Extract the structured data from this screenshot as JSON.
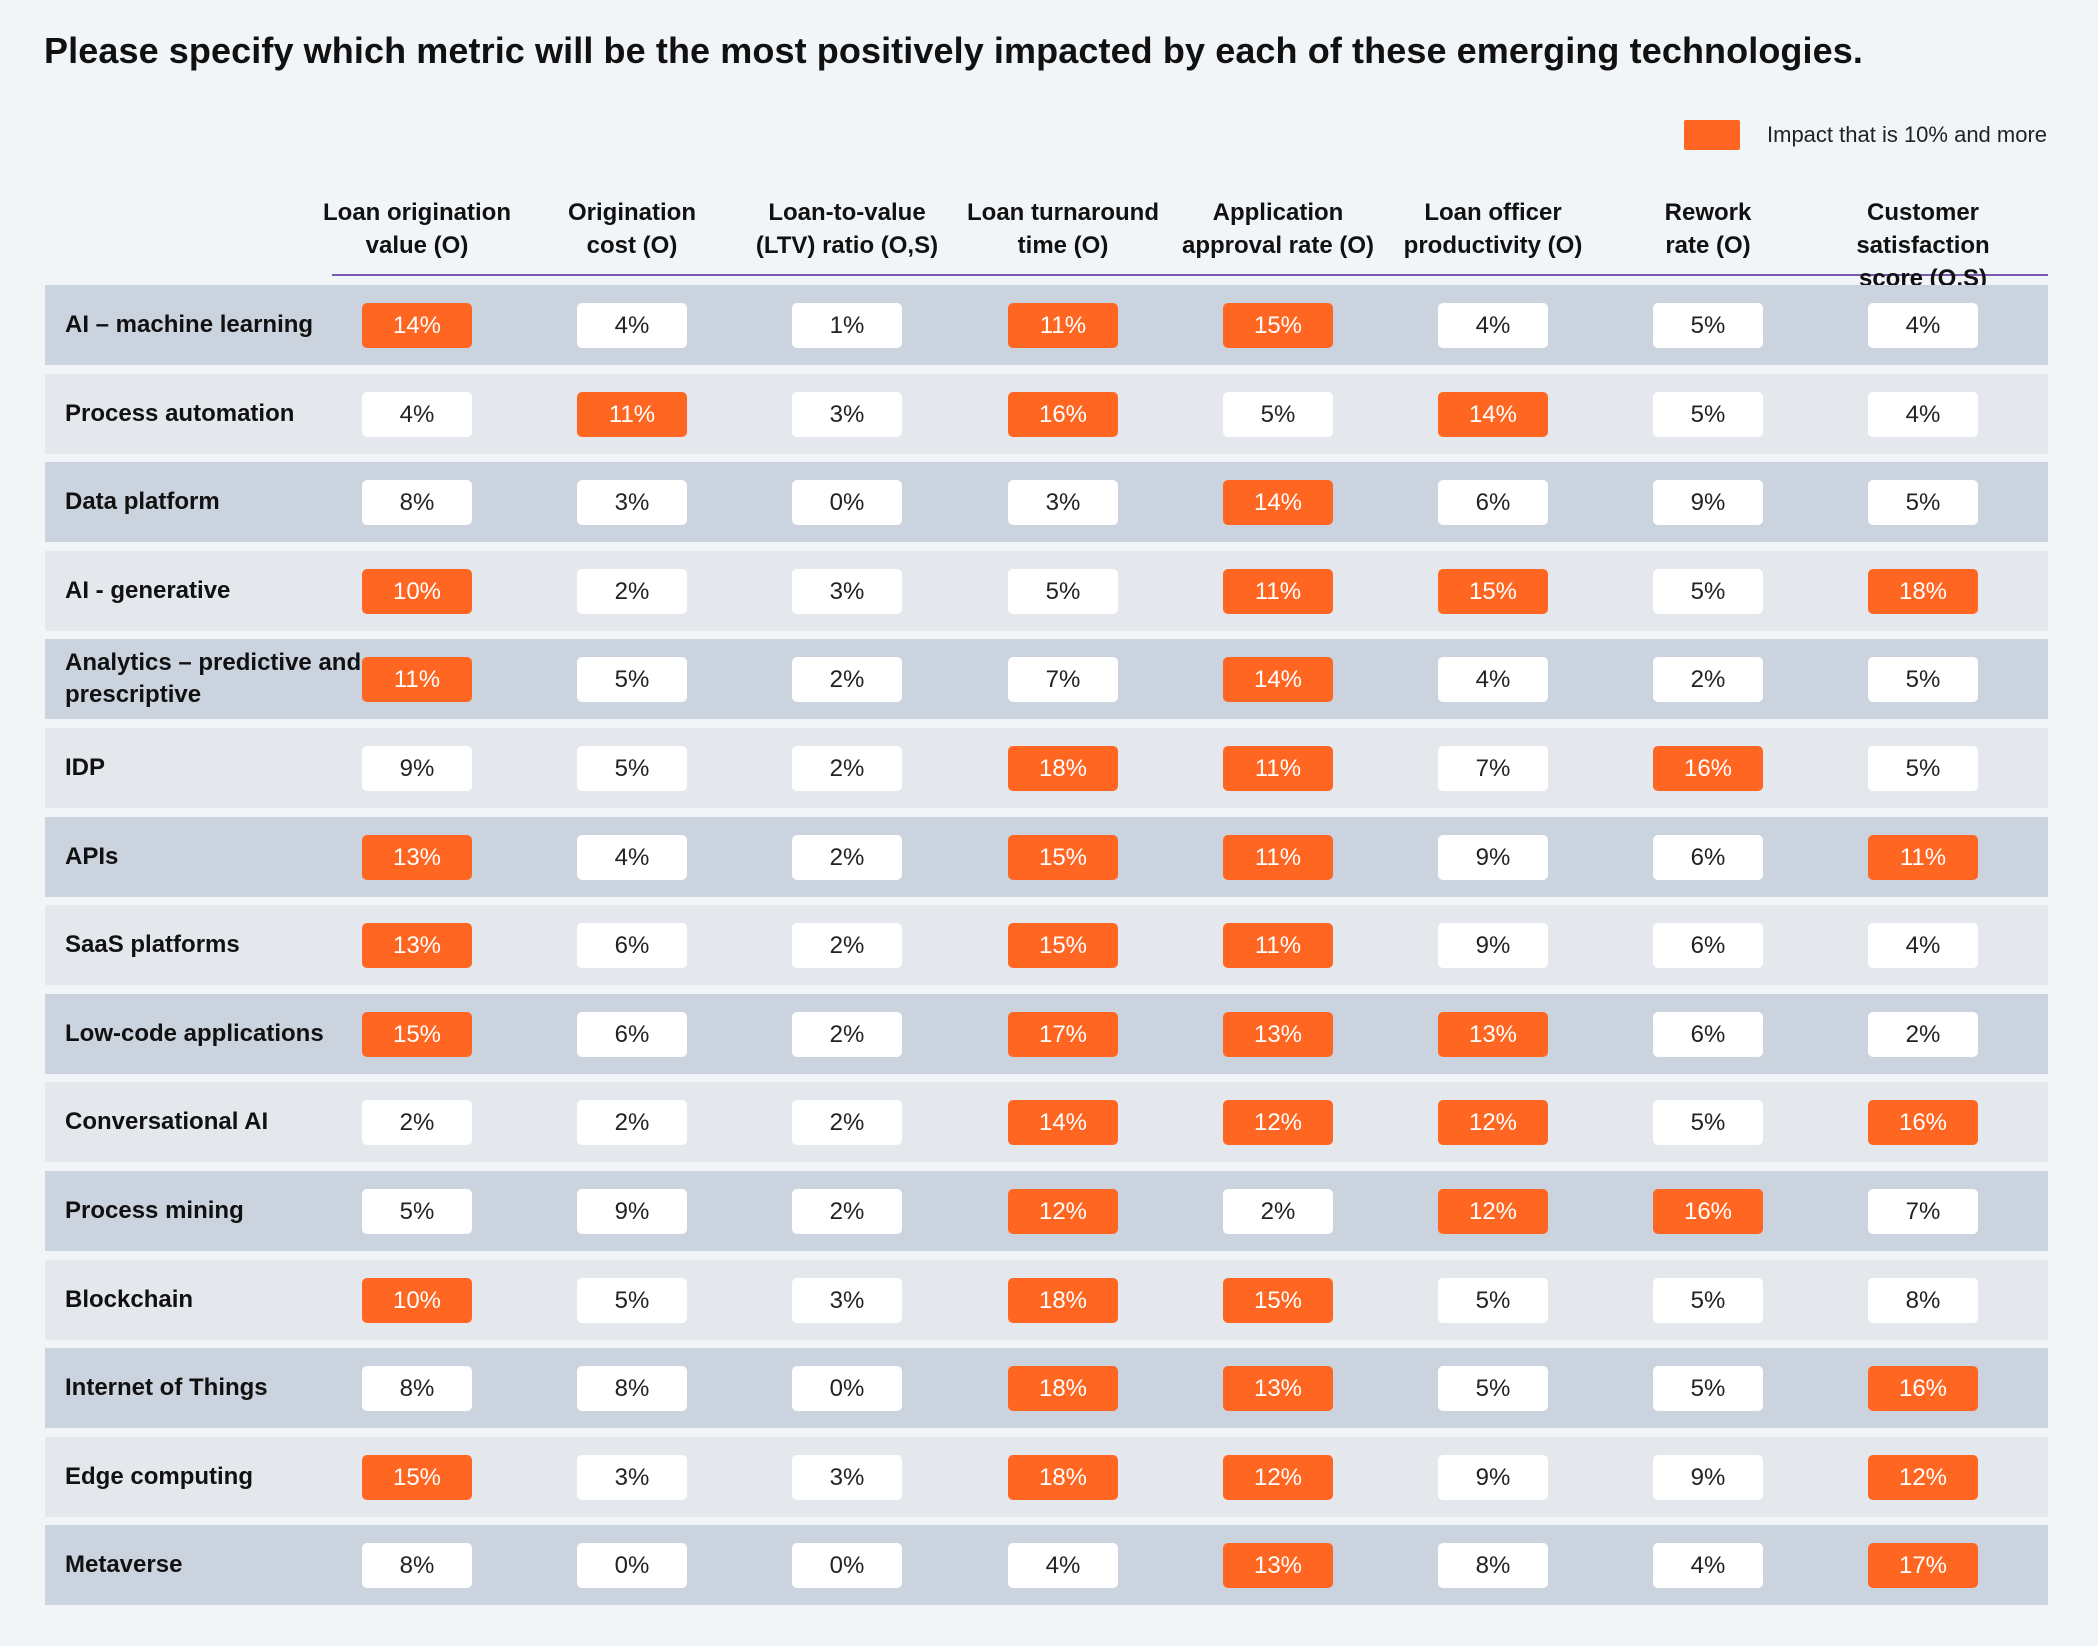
{
  "title": "Please specify which metric will be the most positively impacted by each of these emerging technologies.",
  "legend": {
    "label": "Impact that is 10% and more",
    "color": "#ff6622"
  },
  "colors": {
    "highlight": "#ff6622",
    "row_dark": "#cbd3de",
    "row_light": "#e4e8ed",
    "cell": "#ffffff",
    "header_rule": "#7a5ab0"
  },
  "chart_data": {
    "type": "table",
    "threshold": 10,
    "columns": [
      "Loan origination\nvalue (O)",
      "Origination\ncost (O)",
      "Loan-to-value\n(LTV) ratio (O,S)",
      "Loan turnaround\ntime (O)",
      "Application\napproval rate (O)",
      "Loan officer\nproductivity (O)",
      "Rework\nrate (O)",
      "Customer satisfaction\nscore (O,S)"
    ],
    "rows": [
      {
        "label": "AI – machine learning",
        "values": [
          14,
          4,
          1,
          11,
          15,
          4,
          5,
          4
        ]
      },
      {
        "label": "Process automation",
        "values": [
          4,
          11,
          3,
          16,
          5,
          14,
          5,
          4
        ]
      },
      {
        "label": "Data platform",
        "values": [
          8,
          3,
          0,
          3,
          14,
          6,
          9,
          5
        ]
      },
      {
        "label": "AI - generative",
        "values": [
          10,
          2,
          3,
          5,
          11,
          15,
          5,
          18
        ]
      },
      {
        "label": "Analytics – predictive and prescriptive",
        "values": [
          11,
          5,
          2,
          7,
          14,
          4,
          2,
          5
        ]
      },
      {
        "label": "IDP",
        "values": [
          9,
          5,
          2,
          18,
          11,
          7,
          16,
          5
        ]
      },
      {
        "label": "APIs",
        "values": [
          13,
          4,
          2,
          15,
          11,
          9,
          6,
          11
        ]
      },
      {
        "label": "SaaS platforms",
        "values": [
          13,
          6,
          2,
          15,
          11,
          9,
          6,
          4
        ]
      },
      {
        "label": "Low-code applications",
        "values": [
          15,
          6,
          2,
          17,
          13,
          13,
          6,
          2
        ]
      },
      {
        "label": "Conversational AI",
        "values": [
          2,
          2,
          2,
          14,
          12,
          12,
          5,
          16
        ]
      },
      {
        "label": "Process mining",
        "values": [
          5,
          9,
          2,
          12,
          2,
          12,
          16,
          7
        ]
      },
      {
        "label": "Blockchain",
        "values": [
          10,
          5,
          3,
          18,
          15,
          5,
          5,
          8
        ]
      },
      {
        "label": "Internet of Things",
        "values": [
          8,
          8,
          0,
          18,
          13,
          5,
          5,
          16
        ]
      },
      {
        "label": "Edge computing",
        "values": [
          15,
          3,
          3,
          18,
          12,
          9,
          9,
          12
        ]
      },
      {
        "label": "Metaverse",
        "values": [
          8,
          0,
          0,
          4,
          13,
          8,
          4,
          17
        ]
      }
    ],
    "unit": "%"
  }
}
